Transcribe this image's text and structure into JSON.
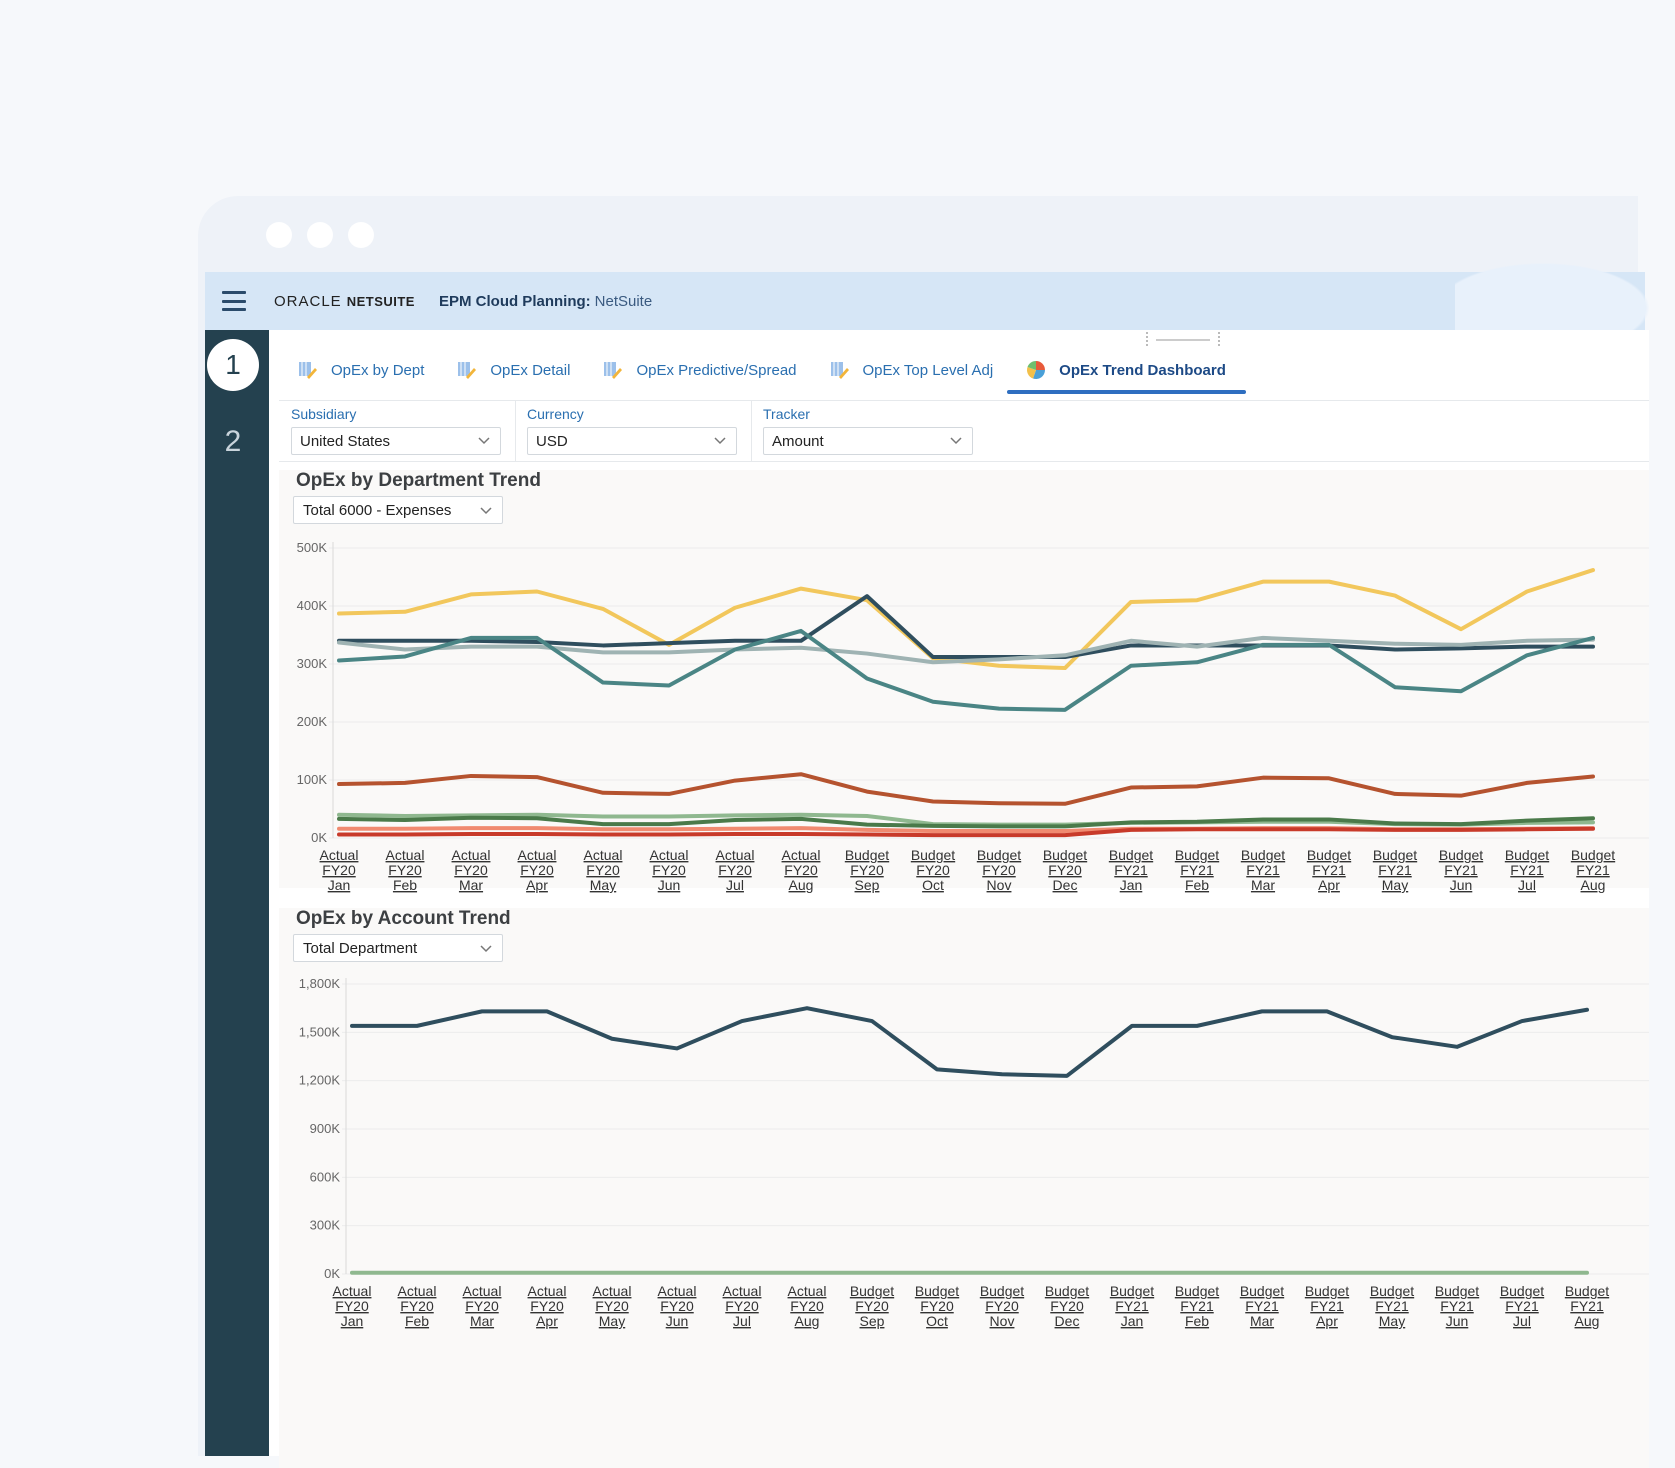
{
  "app": {
    "brand_oracle": "ORACLE",
    "brand_netsuite": "NETSUITE",
    "title": "EPM Cloud Planning:",
    "subtitle": "NetSuite"
  },
  "rail": {
    "steps": [
      "1",
      "2"
    ]
  },
  "tabs": [
    {
      "label": "OpEx by Dept",
      "icon": "form-edit-icon"
    },
    {
      "label": "OpEx Detail",
      "icon": "form-edit-icon"
    },
    {
      "label": "OpEx Predictive/Spread",
      "icon": "form-edit-icon"
    },
    {
      "label": "OpEx Top Level Adj",
      "icon": "form-edit-icon"
    },
    {
      "label": "OpEx Trend Dashboard",
      "icon": "pie-chart-icon",
      "active": true
    }
  ],
  "filters": [
    {
      "label": "Subsidiary",
      "value": "United States"
    },
    {
      "label": "Currency",
      "value": "USD"
    },
    {
      "label": "Tracker",
      "value": "Amount"
    }
  ],
  "colors": {
    "yellow": "#f2c75c",
    "dark_teal": "#2f4e5e",
    "teal": "#4a8585",
    "grey_teal": "#9fb3b3",
    "rust": "#b5532f",
    "green": "#4a7a4a",
    "light_green": "#8fb88f",
    "red": "#c83a2a",
    "salmon": "#f08a70"
  },
  "chart_data": [
    {
      "type": "line",
      "title": "OpEx by Department Trend",
      "selector": "Total 6000 - Expenses",
      "x": [
        "Actual FY20 Jan",
        "Actual FY20 Feb",
        "Actual FY20 Mar",
        "Actual FY20 Apr",
        "Actual FY20 May",
        "Actual FY20 Jun",
        "Actual FY20 Jul",
        "Actual FY20 Aug",
        "Budget FY20 Sep",
        "Budget FY20 Oct",
        "Budget FY20 Nov",
        "Budget FY20 Dec",
        "Budget FY21 Jan",
        "Budget FY21 Feb",
        "Budget FY21 Mar",
        "Budget FY21 Apr",
        "Budget FY21 May",
        "Budget FY21 Jun",
        "Budget FY21 Jul",
        "Budget FY21 Aug"
      ],
      "y_ticks": [
        "0K",
        "100K",
        "200K",
        "300K",
        "400K",
        "500K"
      ],
      "ylim": [
        0,
        500
      ],
      "series": [
        {
          "color": "yellow",
          "values": [
            387,
            390,
            420,
            425,
            395,
            333,
            397,
            430,
            410,
            310,
            297,
            293,
            407,
            410,
            442,
            442,
            418,
            360,
            425,
            462
          ]
        },
        {
          "color": "dark_teal",
          "values": [
            340,
            340,
            340,
            338,
            332,
            336,
            340,
            340,
            417,
            312,
            312,
            312,
            332,
            332,
            332,
            332,
            325,
            327,
            330,
            330
          ]
        },
        {
          "color": "grey_teal",
          "values": [
            337,
            325,
            330,
            330,
            320,
            320,
            325,
            328,
            318,
            303,
            308,
            315,
            340,
            330,
            345,
            340,
            335,
            333,
            340,
            342
          ]
        },
        {
          "color": "teal",
          "values": [
            306,
            313,
            345,
            345,
            268,
            263,
            325,
            357,
            275,
            235,
            223,
            221,
            297,
            303,
            333,
            333,
            260,
            253,
            315,
            345
          ]
        },
        {
          "color": "rust",
          "values": [
            93,
            95,
            107,
            105,
            78,
            76,
            99,
            110,
            80,
            63,
            60,
            59,
            87,
            89,
            104,
            103,
            76,
            73,
            95,
            106
          ]
        },
        {
          "color": "light_green",
          "values": [
            40,
            38,
            39,
            40,
            37,
            37,
            39,
            40,
            38,
            24,
            23,
            23,
            26,
            27,
            28,
            28,
            24,
            23,
            26,
            27
          ]
        },
        {
          "color": "green",
          "values": [
            33,
            31,
            35,
            34,
            24,
            24,
            31,
            33,
            23,
            21,
            20,
            20,
            27,
            28,
            32,
            32,
            25,
            24,
            30,
            34
          ]
        },
        {
          "color": "salmon",
          "values": [
            16,
            16,
            17,
            17,
            15,
            15,
            16,
            17,
            14,
            12,
            12,
            12,
            16,
            16,
            17,
            17,
            15,
            15,
            16,
            17
          ]
        },
        {
          "color": "red",
          "values": [
            6,
            6,
            7,
            7,
            6,
            6,
            7,
            7,
            6,
            5,
            5,
            5,
            14,
            15,
            15,
            15,
            14,
            14,
            15,
            16
          ]
        }
      ]
    },
    {
      "type": "line",
      "title": "OpEx by Account Trend",
      "selector": "Total Department",
      "x": [
        "Actual FY20 Jan",
        "Actual FY20 Feb",
        "Actual FY20 Mar",
        "Actual FY20 Apr",
        "Actual FY20 May",
        "Actual FY20 Jun",
        "Actual FY20 Jul",
        "Actual FY20 Aug",
        "Budget FY20 Sep",
        "Budget FY20 Oct",
        "Budget FY20 Nov",
        "Budget FY20 Dec",
        "Budget FY21 Jan",
        "Budget FY21 Feb",
        "Budget FY21 Mar",
        "Budget FY21 Apr",
        "Budget FY21 May",
        "Budget FY21 Jun",
        "Budget FY21 Jul",
        "Budget FY21 Aug"
      ],
      "y_ticks": [
        "0K",
        "300K",
        "600K",
        "900K",
        "1,200K",
        "1,500K",
        "1,800K"
      ],
      "ylim": [
        0,
        1800
      ],
      "series": [
        {
          "color": "dark_teal",
          "values": [
            1540,
            1540,
            1630,
            1630,
            1460,
            1400,
            1570,
            1650,
            1570,
            1270,
            1240,
            1230,
            1540,
            1540,
            1630,
            1630,
            1470,
            1410,
            1570,
            1640
          ]
        },
        {
          "color": "light_green",
          "values": [
            8,
            8,
            8,
            8,
            8,
            8,
            8,
            8,
            8,
            8,
            8,
            8,
            8,
            8,
            8,
            8,
            8,
            8,
            8,
            8
          ]
        }
      ]
    }
  ]
}
